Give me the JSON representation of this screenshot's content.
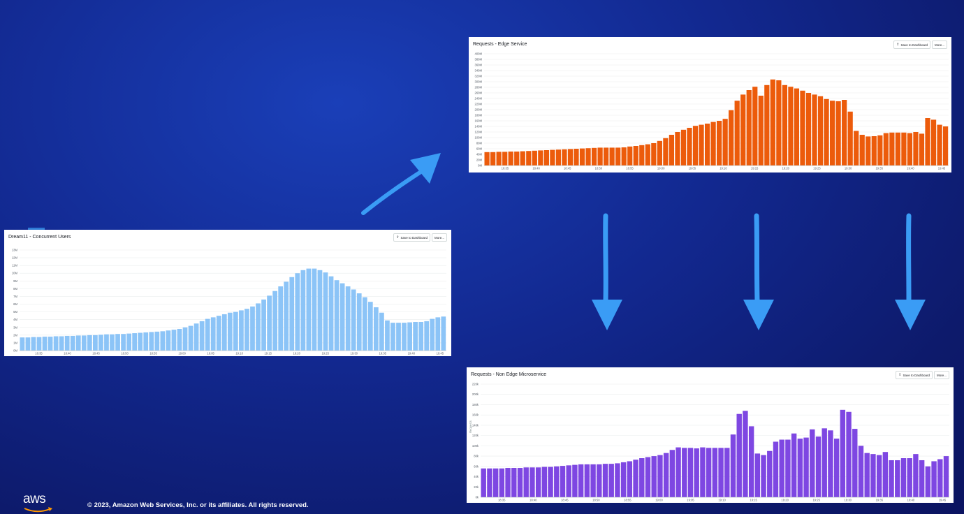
{
  "footer": {
    "copyright": "© 2023, Amazon Web Services, Inc. or its affiliates. All rights reserved."
  },
  "logo": {
    "text": "aws"
  },
  "buttons": {
    "save": "Save to Dashboard",
    "more": "More..."
  },
  "colors": {
    "users": "#8cc4f7",
    "edge": "#ec5b0b",
    "micro": "#7e47e2",
    "arrow": "#3a9cf5"
  },
  "icons": {
    "save": "upload-icon"
  },
  "chart_data": [
    {
      "id": "users",
      "type": "bar",
      "title": "Dream11 - Concurrent Users",
      "ylim": [
        0,
        13
      ],
      "yticks": [
        "0M",
        "1M",
        "2M",
        "3M",
        "4M",
        "5M",
        "6M",
        "7M",
        "8M",
        "9M",
        "10M",
        "11M",
        "12M",
        "13M"
      ],
      "xticks": [
        "18:35",
        "18:40",
        "18:45",
        "18:50",
        "18:55",
        "19:00",
        "19:05",
        "19:10",
        "19:15",
        "19:20",
        "19:25",
        "19:30",
        "19:35",
        "19:40",
        "19:45"
      ],
      "values": [
        1.7,
        1.7,
        1.75,
        1.75,
        1.8,
        1.8,
        1.85,
        1.85,
        1.9,
        1.9,
        1.95,
        1.95,
        2.0,
        2.0,
        2.05,
        2.1,
        2.1,
        2.15,
        2.15,
        2.2,
        2.25,
        2.3,
        2.35,
        2.4,
        2.45,
        2.5,
        2.6,
        2.7,
        2.8,
        3.0,
        3.2,
        3.5,
        3.8,
        4.1,
        4.3,
        4.5,
        4.7,
        4.9,
        5.0,
        5.2,
        5.4,
        5.7,
        6.1,
        6.6,
        7.1,
        7.7,
        8.3,
        8.9,
        9.5,
        10.0,
        10.4,
        10.6,
        10.6,
        10.4,
        10.1,
        9.6,
        9.1,
        8.7,
        8.3,
        7.9,
        7.4,
        6.9,
        6.3,
        5.6,
        4.9,
        3.9,
        3.6,
        3.6,
        3.6,
        3.65,
        3.7,
        3.7,
        3.8,
        4.1,
        4.3,
        4.4
      ]
    },
    {
      "id": "edge",
      "type": "bar",
      "title": "Requests - Edge Service",
      "ylim": [
        0,
        400
      ],
      "yticks": [
        "0M",
        "20M",
        "40M",
        "60M",
        "80M",
        "100M",
        "120M",
        "140M",
        "160M",
        "180M",
        "200M",
        "220M",
        "240M",
        "260M",
        "280M",
        "300M",
        "320M",
        "340M",
        "360M",
        "380M",
        "400M"
      ],
      "xticks": [
        "18:35",
        "18:40",
        "18:45",
        "18:50",
        "18:55",
        "19:00",
        "19:05",
        "19:10",
        "19:15",
        "19:20",
        "19:25",
        "19:30",
        "19:35",
        "19:40",
        "19:45"
      ],
      "values": [
        48,
        48,
        49,
        49,
        50,
        50,
        51,
        52,
        53,
        54,
        55,
        56,
        57,
        58,
        59,
        60,
        61,
        62,
        63,
        64,
        64,
        64,
        64,
        65,
        68,
        70,
        73,
        76,
        80,
        88,
        98,
        110,
        120,
        128,
        135,
        142,
        146,
        150,
        156,
        160,
        167,
        198,
        232,
        254,
        270,
        282,
        250,
        288,
        308,
        305,
        288,
        282,
        276,
        268,
        260,
        254,
        248,
        238,
        232,
        230,
        235,
        193,
        124,
        110,
        104,
        105,
        108,
        116,
        118,
        118,
        118,
        116,
        120,
        114,
        170,
        164,
        146,
        140
      ]
    },
    {
      "id": "micro",
      "type": "bar",
      "title": "Requests - Non Edge Microservice",
      "ylim": [
        0,
        220
      ],
      "yticks": [
        "0k",
        "20k",
        "40k",
        "60k",
        "80k",
        "100k",
        "120k",
        "140k",
        "160k",
        "180k",
        "200k",
        "220k"
      ],
      "ylabel": "Requests",
      "xticks": [
        "18:35",
        "18:40",
        "18:45",
        "18:50",
        "18:55",
        "19:00",
        "19:05",
        "19:10",
        "19:15",
        "19:20",
        "19:25",
        "19:30",
        "19:35",
        "19:40",
        "19:45"
      ],
      "values": [
        56,
        56,
        56,
        56,
        57,
        57,
        57,
        58,
        58,
        58,
        59,
        59,
        60,
        61,
        62,
        63,
        64,
        64,
        64,
        64,
        65,
        65,
        66,
        68,
        70,
        73,
        76,
        78,
        80,
        82,
        86,
        92,
        97,
        96,
        96,
        95,
        97,
        96,
        96,
        96,
        96,
        122,
        162,
        168,
        138,
        85,
        82,
        90,
        108,
        112,
        112,
        124,
        114,
        116,
        132,
        118,
        134,
        130,
        114,
        170,
        166,
        133,
        100,
        86,
        84,
        82,
        88,
        72,
        72,
        76,
        76,
        84,
        72,
        60,
        70,
        74,
        80
      ]
    }
  ]
}
